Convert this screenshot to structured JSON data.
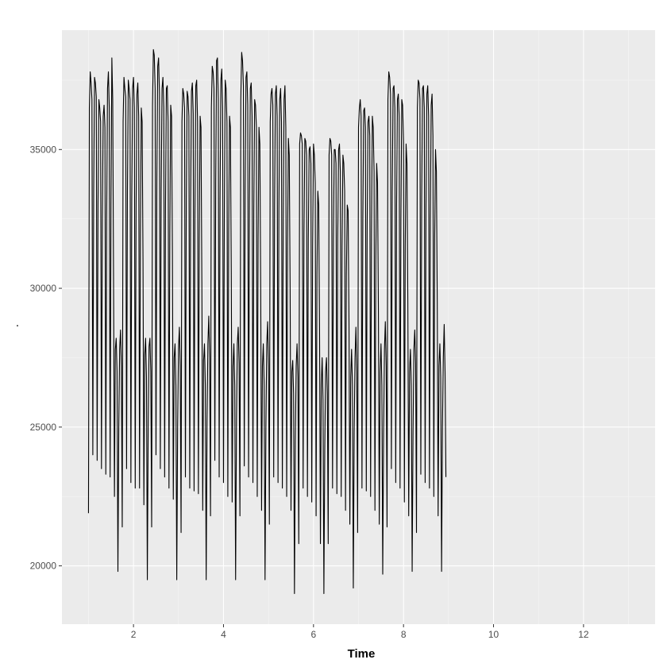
{
  "chart_data": {
    "type": "line",
    "title": "",
    "xlabel": "Time",
    "ylabel": ".",
    "xlim": [
      0.41,
      13.59
    ],
    "ylim": [
      17900,
      39300
    ],
    "x_ticks": [
      2,
      4,
      6,
      8,
      10,
      12
    ],
    "y_ticks": [
      20000,
      25000,
      30000,
      35000
    ],
    "x_minor_ticks": [
      1,
      3,
      5,
      7,
      9,
      11,
      13
    ],
    "y_minor_ticks": [
      22500,
      27500,
      32500,
      37500
    ],
    "grid": true,
    "legend": "none",
    "colors": {
      "panel_background": "#ebebeb",
      "grid_major": "#ffffff",
      "grid_minor": "#f5f5f5",
      "line": "#000000",
      "tick_text": "#4d4d4d",
      "tick_mark": "#333333"
    },
    "series": [
      {
        "x_start": 1,
        "x_step": 0.01923,
        "values": [
          21900,
          36500,
          37800,
          37400,
          36800,
          24000,
          33500,
          37600,
          37400,
          36900,
          23800,
          33000,
          36800,
          36500,
          36000,
          23500,
          32500,
          36200,
          36600,
          35800,
          23300,
          32500,
          37200,
          37800,
          36500,
          23200,
          33000,
          38300,
          36800,
          30000,
          22500,
          27800,
          28200,
          27000,
          19800,
          25000,
          27800,
          28500,
          27200,
          21400,
          36000,
          37600,
          37200,
          36900,
          23500,
          33500,
          37500,
          37200,
          36800,
          23000,
          33200,
          37200,
          37600,
          36500,
          22800,
          33000,
          37000,
          37400,
          36200,
          22800,
          32000,
          36500,
          36000,
          31000,
          22200,
          27600,
          28200,
          26800,
          19500,
          25200,
          27900,
          28200,
          27000,
          21400,
          36600,
          38600,
          38400,
          37200,
          24000,
          34000,
          38000,
          38300,
          37000,
          23500,
          33500,
          37200,
          37600,
          36500,
          23200,
          33000,
          37200,
          37300,
          36000,
          22800,
          32000,
          36600,
          36200,
          31200,
          22400,
          27500,
          28000,
          26500,
          19500,
          25000,
          27800,
          28600,
          27200,
          21200,
          36000,
          37200,
          37000,
          36500,
          23200,
          33200,
          37100,
          36900,
          36200,
          22800,
          33000,
          37100,
          37400,
          36300,
          22700,
          32800,
          37300,
          37500,
          36000,
          22600,
          31800,
          36200,
          35800,
          30200,
          22000,
          27400,
          28000,
          26500,
          19500,
          25200,
          28000,
          29000,
          27500,
          21800,
          36500,
          38000,
          37800,
          37200,
          23800,
          33800,
          38200,
          38300,
          36800,
          23200,
          33200,
          37500,
          37900,
          36500,
          23000,
          33000,
          37500,
          37200,
          36000,
          22500,
          32000,
          36200,
          35800,
          30600,
          22300,
          27200,
          28000,
          26500,
          19500,
          25200,
          28000,
          28600,
          27300,
          21800,
          36800,
          38500,
          38200,
          37300,
          23600,
          33600,
          37600,
          37800,
          36600,
          23200,
          33200,
          37200,
          37400,
          36200,
          23000,
          32800,
          36800,
          36600,
          35800,
          22500,
          31800,
          35800,
          35200,
          30000,
          22000,
          27200,
          28000,
          26500,
          19500,
          25000,
          28000,
          28800,
          27200,
          21500,
          36000,
          37000,
          37200,
          36600,
          23200,
          33000,
          37000,
          37300,
          36200,
          23000,
          32800,
          36800,
          37200,
          36000,
          22800,
          32500,
          36800,
          37300,
          35800,
          22500,
          31500,
          35400,
          34800,
          30000,
          22000,
          27000,
          27400,
          26200,
          19000,
          24500,
          27200,
          28000,
          26800,
          20800,
          35200,
          35600,
          35500,
          35200,
          22800,
          32000,
          35400,
          35300,
          34800,
          22500,
          31800,
          35000,
          35100,
          34500,
          22300,
          31500,
          35200,
          34800,
          33800,
          21800,
          30500,
          33500,
          33000,
          28500,
          20800,
          26500,
          27500,
          26000,
          19000,
          24200,
          27000,
          27500,
          26200,
          20800,
          34800,
          35400,
          35300,
          34800,
          22800,
          31800,
          35000,
          35000,
          34500,
          22600,
          31800,
          35000,
          35200,
          34200,
          22500,
          31500,
          34800,
          34500,
          33500,
          22000,
          30500,
          33000,
          32800,
          28800,
          21500,
          26800,
          27800,
          26500,
          19200,
          24800,
          27500,
          28600,
          27000,
          21200,
          35800,
          36500,
          36800,
          36200,
          22800,
          32500,
          36400,
          36500,
          35800,
          22700,
          32300,
          36000,
          36200,
          35500,
          22500,
          32000,
          36200,
          35800,
          34200,
          22000,
          31000,
          34500,
          33800,
          29200,
          21500,
          27000,
          28000,
          26500,
          19700,
          24800,
          27800,
          28800,
          27200,
          21400,
          36800,
          37800,
          37600,
          37000,
          23500,
          33500,
          37200,
          37300,
          36500,
          23000,
          33000,
          36800,
          37000,
          36200,
          22800,
          32500,
          36800,
          36600,
          35300,
          22300,
          31500,
          35200,
          34500,
          29500,
          21800,
          27000,
          27800,
          26500,
          19800,
          24800,
          27800,
          28500,
          27300,
          21200,
          36500,
          37500,
          37400,
          36800,
          23300,
          33300,
          37200,
          37300,
          36500,
          23000,
          33000,
          37000,
          37300,
          36200,
          22800,
          32500,
          36600,
          37000,
          35500,
          22500,
          31800,
          35000,
          34200,
          29500,
          21800,
          27200,
          28000,
          26800,
          19800,
          25000,
          27500,
          28700,
          27000,
          23200
        ]
      }
    ]
  }
}
